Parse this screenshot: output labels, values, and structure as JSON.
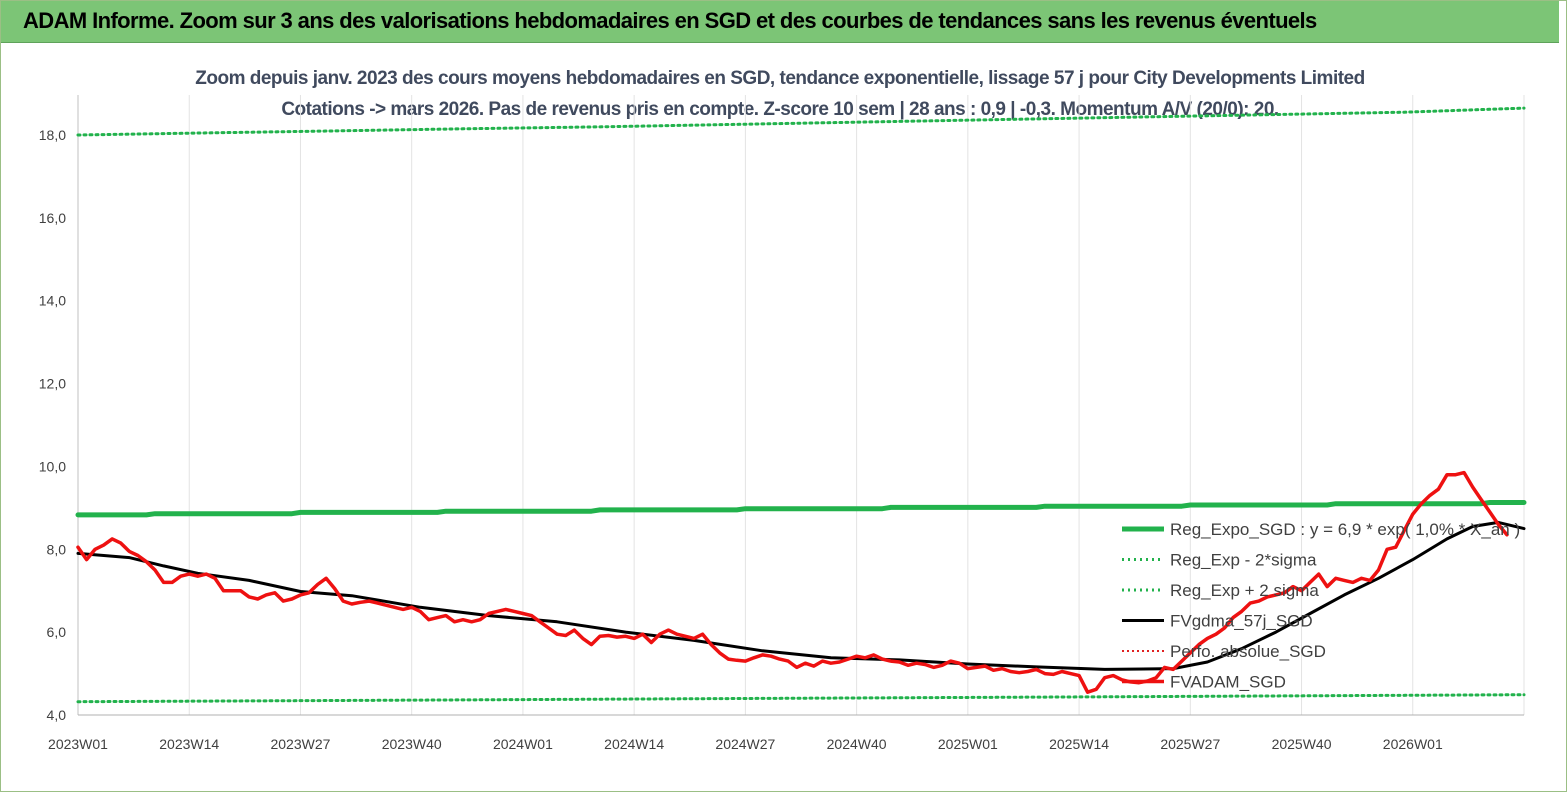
{
  "banner": {
    "title": "ADAM Informe. Zoom sur 3 ans des valorisations hebdomadaires en SGD et des courbes de tendances sans les revenus éventuels"
  },
  "chart_data": {
    "type": "line",
    "title": "Zoom depuis janv. 2023 des cours moyens hebdomadaires en SGD, tendance exponentielle, lissage 57 j pour City Developments Limited",
    "subtitle": "Cotations -> mars 2026. Pas de revenus pris en compte. Z-score 10 sem | 28 ans : 0,9 | -0,3. Momentum A/V (20/0): 20.",
    "x_tick_labels": [
      "2023W01",
      "2023W14",
      "2023W27",
      "2023W40",
      "2024W01",
      "2024W14",
      "2024W27",
      "2024W40",
      "2025W01",
      "2025W14",
      "2025W27",
      "2025W40",
      "2026W01"
    ],
    "x_range_weeks": [
      0,
      169
    ],
    "y_tick_labels": [
      "4,0",
      "6,0",
      "8,0",
      "10,0",
      "12,0",
      "14,0",
      "16,0",
      "18,0"
    ],
    "ylim": [
      4,
      18
    ],
    "grid": "vertical",
    "legend_position": "right",
    "colors": {
      "reg_expo": "#22b24c",
      "sigma": "#22b24c",
      "fvgdma": "#000000",
      "perf": "#e02020",
      "fvadam": "#ee1111"
    },
    "series": [
      {
        "name": "Reg_Expo_SGD : y = 6,9 * exp( 1,0% * X_an )",
        "style": "solid-green-thick",
        "points": [
          [
            0,
            8.83
          ],
          [
            8,
            8.83
          ],
          [
            9,
            8.86
          ],
          [
            25,
            8.86
          ],
          [
            26,
            8.89
          ],
          [
            42,
            8.89
          ],
          [
            43,
            8.92
          ],
          [
            60,
            8.92
          ],
          [
            61,
            8.95
          ],
          [
            77,
            8.95
          ],
          [
            78,
            8.98
          ],
          [
            94,
            8.98
          ],
          [
            95,
            9.01
          ],
          [
            112,
            9.01
          ],
          [
            113,
            9.04
          ],
          [
            129,
            9.04
          ],
          [
            130,
            9.07
          ],
          [
            146,
            9.07
          ],
          [
            147,
            9.1
          ],
          [
            164,
            9.1
          ],
          [
            165,
            9.13
          ],
          [
            169,
            9.13
          ]
        ]
      },
      {
        "name": "Reg_Exp - 2*sigma",
        "style": "dotted-green",
        "points": [
          [
            0,
            4.32
          ],
          [
            40,
            4.36
          ],
          [
            80,
            4.4
          ],
          [
            120,
            4.44
          ],
          [
            160,
            4.48
          ],
          [
            169,
            4.49
          ]
        ]
      },
      {
        "name": "Reg_Exp + 2 sigma",
        "style": "dotted-green",
        "points": [
          [
            0,
            18.0
          ],
          [
            15,
            18.05
          ],
          [
            30,
            18.1
          ],
          [
            45,
            18.15
          ],
          [
            62,
            18.2
          ],
          [
            155,
            18.55
          ],
          [
            169,
            18.65
          ]
        ]
      },
      {
        "name": "FVgdma_57j_SGD",
        "style": "solid-black",
        "points": [
          [
            0,
            7.9
          ],
          [
            6,
            7.8
          ],
          [
            10,
            7.6
          ],
          [
            14,
            7.42
          ],
          [
            20,
            7.25
          ],
          [
            26,
            6.98
          ],
          [
            32,
            6.88
          ],
          [
            40,
            6.6
          ],
          [
            48,
            6.4
          ],
          [
            56,
            6.25
          ],
          [
            64,
            6.0
          ],
          [
            72,
            5.8
          ],
          [
            80,
            5.55
          ],
          [
            88,
            5.38
          ],
          [
            96,
            5.33
          ],
          [
            104,
            5.23
          ],
          [
            112,
            5.16
          ],
          [
            120,
            5.1
          ],
          [
            128,
            5.12
          ],
          [
            132,
            5.28
          ],
          [
            136,
            5.6
          ],
          [
            140,
            6.0
          ],
          [
            144,
            6.45
          ],
          [
            148,
            6.9
          ],
          [
            152,
            7.3
          ],
          [
            156,
            7.75
          ],
          [
            160,
            8.25
          ],
          [
            163,
            8.55
          ],
          [
            166,
            8.65
          ],
          [
            169,
            8.5
          ]
        ]
      },
      {
        "name": "Perfo. absolue_SGD",
        "style": "dotted-red",
        "points": []
      },
      {
        "name": "FVADAM_SGD",
        "style": "solid-red-thick",
        "points": [
          [
            0,
            8.05
          ],
          [
            1,
            7.75
          ],
          [
            2,
            8.0
          ],
          [
            3,
            8.1
          ],
          [
            4,
            8.25
          ],
          [
            5,
            8.15
          ],
          [
            6,
            7.95
          ],
          [
            7,
            7.85
          ],
          [
            8,
            7.7
          ],
          [
            9,
            7.5
          ],
          [
            10,
            7.2
          ],
          [
            11,
            7.2
          ],
          [
            12,
            7.35
          ],
          [
            13,
            7.4
          ],
          [
            14,
            7.35
          ],
          [
            15,
            7.4
          ],
          [
            16,
            7.3
          ],
          [
            17,
            7.0
          ],
          [
            18,
            7.0
          ],
          [
            19,
            7.0
          ],
          [
            20,
            6.85
          ],
          [
            21,
            6.8
          ],
          [
            22,
            6.9
          ],
          [
            23,
            6.95
          ],
          [
            24,
            6.75
          ],
          [
            25,
            6.8
          ],
          [
            26,
            6.9
          ],
          [
            27,
            6.95
          ],
          [
            28,
            7.15
          ],
          [
            29,
            7.3
          ],
          [
            30,
            7.05
          ],
          [
            31,
            6.75
          ],
          [
            32,
            6.68
          ],
          [
            33,
            6.72
          ],
          [
            34,
            6.75
          ],
          [
            35,
            6.7
          ],
          [
            36,
            6.65
          ],
          [
            37,
            6.6
          ],
          [
            38,
            6.55
          ],
          [
            39,
            6.6
          ],
          [
            40,
            6.5
          ],
          [
            41,
            6.3
          ],
          [
            42,
            6.35
          ],
          [
            43,
            6.4
          ],
          [
            44,
            6.25
          ],
          [
            45,
            6.3
          ],
          [
            46,
            6.25
          ],
          [
            47,
            6.3
          ],
          [
            48,
            6.45
          ],
          [
            49,
            6.5
          ],
          [
            50,
            6.55
          ],
          [
            51,
            6.5
          ],
          [
            52,
            6.45
          ],
          [
            53,
            6.4
          ],
          [
            54,
            6.25
          ],
          [
            55,
            6.1
          ],
          [
            56,
            5.95
          ],
          [
            57,
            5.92
          ],
          [
            58,
            6.05
          ],
          [
            59,
            5.85
          ],
          [
            60,
            5.7
          ],
          [
            61,
            5.9
          ],
          [
            62,
            5.92
          ],
          [
            63,
            5.88
          ],
          [
            64,
            5.9
          ],
          [
            65,
            5.85
          ],
          [
            66,
            5.95
          ],
          [
            67,
            5.75
          ],
          [
            68,
            5.95
          ],
          [
            69,
            6.05
          ],
          [
            70,
            5.95
          ],
          [
            71,
            5.9
          ],
          [
            72,
            5.85
          ],
          [
            73,
            5.95
          ],
          [
            74,
            5.7
          ],
          [
            75,
            5.5
          ],
          [
            76,
            5.35
          ],
          [
            77,
            5.32
          ],
          [
            78,
            5.3
          ],
          [
            79,
            5.38
          ],
          [
            80,
            5.45
          ],
          [
            81,
            5.42
          ],
          [
            82,
            5.35
          ],
          [
            83,
            5.3
          ],
          [
            84,
            5.15
          ],
          [
            85,
            5.25
          ],
          [
            86,
            5.18
          ],
          [
            87,
            5.3
          ],
          [
            88,
            5.25
          ],
          [
            89,
            5.28
          ],
          [
            90,
            5.35
          ],
          [
            91,
            5.42
          ],
          [
            92,
            5.38
          ],
          [
            93,
            5.45
          ],
          [
            94,
            5.35
          ],
          [
            95,
            5.3
          ],
          [
            96,
            5.28
          ],
          [
            97,
            5.2
          ],
          [
            98,
            5.25
          ],
          [
            99,
            5.22
          ],
          [
            100,
            5.15
          ],
          [
            101,
            5.2
          ],
          [
            102,
            5.3
          ],
          [
            103,
            5.25
          ],
          [
            104,
            5.12
          ],
          [
            105,
            5.15
          ],
          [
            106,
            5.18
          ],
          [
            107,
            5.08
          ],
          [
            108,
            5.12
          ],
          [
            109,
            5.05
          ],
          [
            110,
            5.02
          ],
          [
            111,
            5.05
          ],
          [
            112,
            5.1
          ],
          [
            113,
            5.0
          ],
          [
            114,
            4.98
          ],
          [
            115,
            5.05
          ],
          [
            116,
            5.0
          ],
          [
            117,
            4.95
          ],
          [
            118,
            4.55
          ],
          [
            119,
            4.62
          ],
          [
            120,
            4.9
          ],
          [
            121,
            4.95
          ],
          [
            122,
            4.85
          ],
          [
            123,
            4.8
          ],
          [
            124,
            4.78
          ],
          [
            125,
            4.82
          ],
          [
            126,
            4.9
          ],
          [
            127,
            5.15
          ],
          [
            128,
            5.1
          ],
          [
            129,
            5.3
          ],
          [
            130,
            5.5
          ],
          [
            131,
            5.7
          ],
          [
            132,
            5.85
          ],
          [
            133,
            5.95
          ],
          [
            134,
            6.1
          ],
          [
            135,
            6.35
          ],
          [
            136,
            6.5
          ],
          [
            137,
            6.7
          ],
          [
            138,
            6.75
          ],
          [
            139,
            6.85
          ],
          [
            140,
            6.9
          ],
          [
            141,
            6.95
          ],
          [
            142,
            7.1
          ],
          [
            143,
            7.0
          ],
          [
            144,
            7.2
          ],
          [
            145,
            7.4
          ],
          [
            146,
            7.1
          ],
          [
            147,
            7.3
          ],
          [
            148,
            7.25
          ],
          [
            149,
            7.2
          ],
          [
            150,
            7.3
          ],
          [
            151,
            7.25
          ],
          [
            152,
            7.5
          ],
          [
            153,
            8.0
          ],
          [
            154,
            8.05
          ],
          [
            155,
            8.45
          ],
          [
            156,
            8.85
          ],
          [
            157,
            9.1
          ],
          [
            158,
            9.3
          ],
          [
            159,
            9.45
          ],
          [
            160,
            9.8
          ],
          [
            161,
            9.8
          ],
          [
            162,
            9.85
          ],
          [
            163,
            9.5
          ],
          [
            164,
            9.2
          ],
          [
            165,
            8.9
          ],
          [
            166,
            8.6
          ],
          [
            167,
            8.35
          ]
        ]
      }
    ]
  }
}
